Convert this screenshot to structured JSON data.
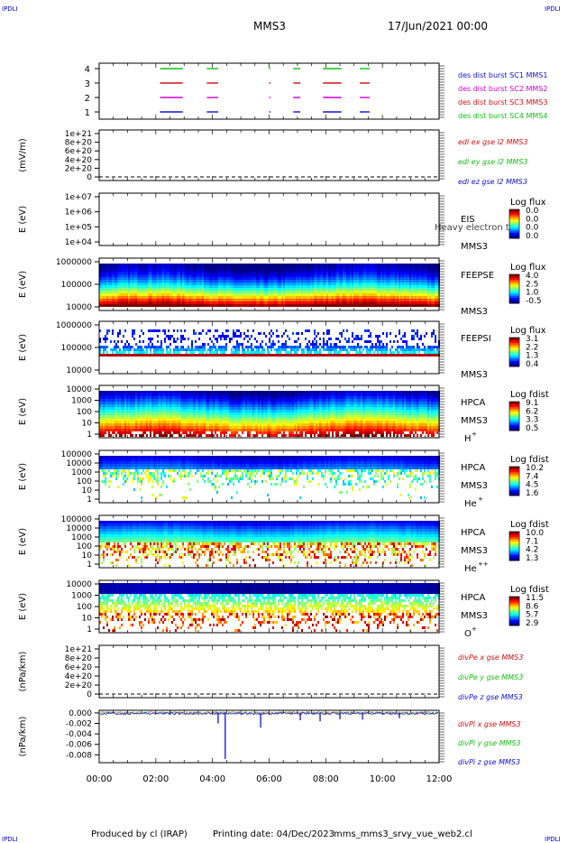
{
  "header": {
    "corner_label": "IPDLI",
    "spacecraft": "MMS3",
    "datetime": "17/Jun/2021 00:00"
  },
  "footer": {
    "producer": "Produced by cl (IRAP)",
    "printing": "Printing date: 04/Dec/2023",
    "file": "mms_mms3_srvy_vue_web2.cl"
  },
  "colors": {
    "blue": "#1010d0",
    "magenta": "#d000d0",
    "red": "#d01010",
    "green": "#10c010"
  },
  "chart_data": [
    {
      "type": "line",
      "ylabel": "",
      "ylim": [
        0.5,
        4.5
      ],
      "yticks": [
        "4",
        "3",
        "2",
        "1"
      ],
      "xticks": [
        "00:00",
        "02:00",
        "04:00",
        "06:00",
        "08:00",
        "10:00",
        "12:00"
      ],
      "xlim_hours": [
        0,
        12
      ],
      "legend": [
        {
          "text": "des dist burst SC1 MMS1",
          "color": "blue"
        },
        {
          "text": "des dist burst SC2 MMS2",
          "color": "magenta"
        },
        {
          "text": "des dist burst SC3 MMS3",
          "color": "red"
        },
        {
          "text": "des dist burst SC4 MMS4",
          "color": "green"
        }
      ],
      "series": [
        {
          "level": 4,
          "color": "green",
          "intervals_hours": [
            [
              2.15,
              2.95
            ],
            [
              3.8,
              4.2
            ],
            [
              6.0,
              6.05
            ],
            [
              6.85,
              7.1
            ],
            [
              7.9,
              8.55
            ],
            [
              9.2,
              9.55
            ]
          ]
        },
        {
          "level": 3,
          "color": "red",
          "intervals_hours": [
            [
              2.15,
              2.95
            ],
            [
              3.8,
              4.2
            ],
            [
              6.0,
              6.05
            ],
            [
              6.85,
              7.1
            ],
            [
              7.9,
              8.55
            ],
            [
              9.2,
              9.55
            ]
          ]
        },
        {
          "level": 2,
          "color": "magenta",
          "intervals_hours": [
            [
              2.15,
              2.95
            ],
            [
              3.8,
              4.2
            ],
            [
              6.0,
              6.05
            ],
            [
              6.85,
              7.1
            ],
            [
              7.9,
              8.55
            ],
            [
              9.2,
              9.55
            ]
          ]
        },
        {
          "level": 1,
          "color": "blue",
          "intervals_hours": [
            [
              2.15,
              2.95
            ],
            [
              3.8,
              4.2
            ],
            [
              6.0,
              6.05
            ],
            [
              6.85,
              7.1
            ],
            [
              7.9,
              8.55
            ],
            [
              9.2,
              9.55
            ]
          ]
        }
      ]
    },
    {
      "type": "line",
      "ylabel": "(mV/m)",
      "yticks": [
        "1e+21",
        "8e+20",
        "6e+20",
        "4e+20",
        "2e+20",
        "0"
      ],
      "legend": [
        {
          "text": "edi ex gse l2 MMS3",
          "color": "red"
        },
        {
          "text": "edi ey gse l2 MMS3",
          "color": "green"
        },
        {
          "text": "edi ez gse l2 MMS3",
          "color": "blue"
        }
      ]
    },
    {
      "type": "heatmap",
      "ylabel": "E (eV)",
      "yticks": [
        "1e+07",
        "1e+06",
        "1e+05",
        "1e+04"
      ],
      "instrument": "EIS",
      "spacecraft": "MMS3",
      "overlay_text": "Heavy electron to",
      "colorbar_title": "Log flux",
      "colorbar_ticks": [
        "0.0",
        "0.0",
        "0.0",
        "0.0"
      ]
    },
    {
      "type": "heatmap",
      "ylabel": "E (eV)",
      "yticks": [
        "1000000",
        "100000",
        "10000"
      ],
      "instrument": "FEEPSE",
      "spacecraft": "MMS3",
      "colorbar_title": "Log flux",
      "colorbar_ticks": [
        "4.0",
        "2.5",
        "1.0",
        "-0.5"
      ]
    },
    {
      "type": "heatmap",
      "ylabel": "E (eV)",
      "yticks": [
        "1000000",
        "100000",
        "10000"
      ],
      "instrument": "FEEPSI",
      "spacecraft": "MMS3",
      "colorbar_title": "Log flux",
      "colorbar_ticks": [
        "3.1",
        "2.2",
        "1.3",
        "0.4"
      ]
    },
    {
      "type": "heatmap",
      "ylabel": "E (eV)",
      "yticks": [
        "10000",
        "1000",
        "100",
        "10",
        "1"
      ],
      "instrument": "HPCA",
      "spacecraft": "MMS3",
      "species": "H",
      "species_sup": "+",
      "colorbar_title": "Log fdist",
      "colorbar_ticks": [
        "9.1",
        "6.2",
        "3.3",
        "0.5"
      ]
    },
    {
      "type": "heatmap",
      "ylabel": "E (eV)",
      "yticks": [
        "100000",
        "10000",
        "1000",
        "100",
        "10",
        "1"
      ],
      "instrument": "HPCA",
      "spacecraft": "MMS3",
      "species": "He",
      "species_sup": "+",
      "colorbar_title": "Log fdist",
      "colorbar_ticks": [
        "10.2",
        "7.4",
        "4.5",
        "1.6"
      ]
    },
    {
      "type": "heatmap",
      "ylabel": "E (eV)",
      "yticks": [
        "100000",
        "10000",
        "1000",
        "100",
        "10",
        "1"
      ],
      "instrument": "HPCA",
      "spacecraft": "MMS3",
      "species": "He",
      "species_sup": "++",
      "colorbar_title": "Log fdist",
      "colorbar_ticks": [
        "10.0",
        "7.1",
        "4.2",
        "1.3"
      ]
    },
    {
      "type": "heatmap",
      "ylabel": "E (eV)",
      "yticks": [
        "10000",
        "1000",
        "100",
        "10",
        "1"
      ],
      "instrument": "HPCA",
      "spacecraft": "MMS3",
      "species": "O",
      "species_sup": "+",
      "colorbar_title": "Log fdist",
      "colorbar_ticks": [
        "11.5",
        "8.6",
        "5.7",
        "2.9"
      ]
    },
    {
      "type": "line",
      "ylabel": "(nPa/km)",
      "yticks": [
        "1e+21",
        "8e+20",
        "6e+20",
        "4e+20",
        "2e+20",
        "0"
      ],
      "legend": [
        {
          "text": "divPe x gse MMS3",
          "color": "red"
        },
        {
          "text": "divPe y gse MMS3",
          "color": "green"
        },
        {
          "text": "divPe z gse MMS3",
          "color": "blue"
        }
      ]
    },
    {
      "type": "line",
      "ylabel": "(nPa/km)",
      "yticks": [
        "0.000",
        "-0.002",
        "-0.004",
        "-0.006",
        "-0.008"
      ],
      "ylim": [
        -0.0095,
        0.0005
      ],
      "legend": [
        {
          "text": "divPi x gse MMS3",
          "color": "red"
        },
        {
          "text": "divPi y gse MMS3",
          "color": "green"
        },
        {
          "text": "divPi z gse MMS3",
          "color": "blue"
        }
      ],
      "spikes": [
        {
          "t_hours": 2.5,
          "value": -0.0004
        },
        {
          "t_hours": 4.2,
          "value": -0.002
        },
        {
          "t_hours": 4.45,
          "value": -0.0088
        },
        {
          "t_hours": 5.7,
          "value": -0.0028
        },
        {
          "t_hours": 7.1,
          "value": -0.0014
        },
        {
          "t_hours": 7.8,
          "value": -0.0016
        },
        {
          "t_hours": 8.5,
          "value": -0.0012
        },
        {
          "t_hours": 9.3,
          "value": -0.0013
        },
        {
          "t_hours": 10.6,
          "value": -0.001
        }
      ]
    }
  ]
}
